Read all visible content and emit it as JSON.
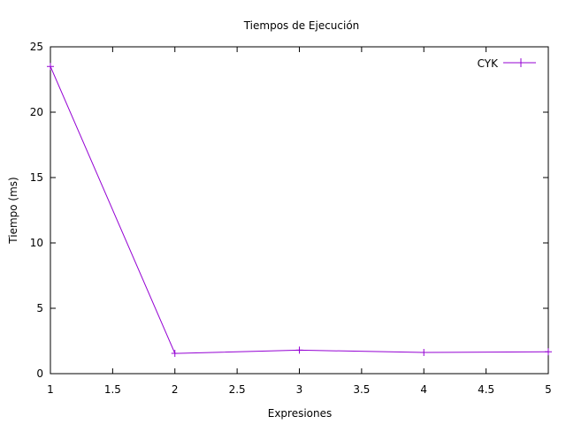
{
  "chart_data": {
    "type": "line",
    "title": "Tiempos de Ejecución",
    "xlabel": "Expresiones",
    "ylabel": "Tiempo (ms)",
    "xlim": [
      1,
      5
    ],
    "ylim": [
      0,
      25
    ],
    "x_ticks": [
      "1",
      "1.5",
      "2",
      "2.5",
      "3",
      "3.5",
      "4",
      "4.5",
      "5"
    ],
    "y_ticks": [
      "0",
      "5",
      "10",
      "15",
      "20",
      "25"
    ],
    "grid": false,
    "legend_position": "top-right",
    "series": [
      {
        "name": "CYK",
        "color": "#9400d3",
        "marker": "plus",
        "x": [
          1,
          2,
          3,
          4,
          5
        ],
        "y": [
          23.5,
          1.55,
          1.8,
          1.62,
          1.67
        ]
      }
    ]
  }
}
